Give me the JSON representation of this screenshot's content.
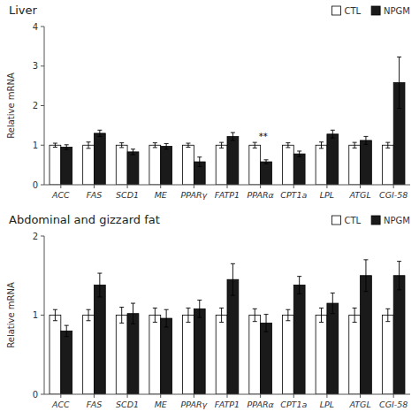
{
  "chart_data": [
    {
      "type": "bar",
      "title": "Liver",
      "categories": [
        "ACC",
        "FAS",
        "SCD1",
        "ME",
        "PPARγ",
        "FATP1",
        "PPARα",
        "CPT1a",
        "LPL",
        "ATGL",
        "CGI-58"
      ],
      "series": [
        {
          "name": "CTL",
          "color": "#ffffff",
          "values": [
            1.0,
            1.0,
            1.0,
            1.0,
            1.0,
            1.0,
            1.0,
            1.0,
            1.0,
            1.0,
            1.0
          ],
          "errors": [
            0.05,
            0.08,
            0.06,
            0.06,
            0.05,
            0.07,
            0.07,
            0.06,
            0.08,
            0.07,
            0.07
          ]
        },
        {
          "name": "NPGM",
          "color": "#1a1a1a",
          "values": [
            0.95,
            1.3,
            0.83,
            0.97,
            0.58,
            1.22,
            0.58,
            0.78,
            1.28,
            1.12,
            2.58
          ],
          "errors": [
            0.06,
            0.08,
            0.07,
            0.07,
            0.12,
            0.1,
            0.05,
            0.07,
            0.1,
            0.1,
            0.65
          ]
        }
      ],
      "ylabel": "Relative mRNA",
      "ylim": [
        0,
        4
      ],
      "yticks": [
        0,
        1,
        2,
        3,
        4
      ],
      "grid": false,
      "legend": "upper right",
      "annotations": [
        {
          "text": "**",
          "category": "PPARα",
          "series": "CTL"
        }
      ]
    },
    {
      "type": "bar",
      "title": "Abdominal and gizzard fat",
      "categories": [
        "ACC",
        "FAS",
        "SCD1",
        "ME",
        "PPARγ",
        "FATP1",
        "PPARα",
        "CPT1a",
        "LPL",
        "ATGL",
        "CGI-58"
      ],
      "series": [
        {
          "name": "CTL",
          "color": "#ffffff",
          "values": [
            1.0,
            1.0,
            1.0,
            1.0,
            1.0,
            1.0,
            1.0,
            1.0,
            1.0,
            1.0,
            1.0
          ],
          "errors": [
            0.07,
            0.07,
            0.1,
            0.09,
            0.09,
            0.09,
            0.08,
            0.07,
            0.09,
            0.09,
            0.08
          ]
        },
        {
          "name": "NPGM",
          "color": "#1a1a1a",
          "values": [
            0.8,
            1.38,
            1.02,
            0.96,
            1.08,
            1.45,
            0.9,
            1.38,
            1.15,
            1.5,
            1.5
          ],
          "errors": [
            0.07,
            0.15,
            0.13,
            0.11,
            0.11,
            0.2,
            0.11,
            0.11,
            0.13,
            0.2,
            0.18
          ]
        }
      ],
      "ylabel": "Relative mRNA",
      "ylim": [
        0,
        2
      ],
      "yticks": [
        0,
        1,
        2
      ],
      "grid": false,
      "legend": "upper right"
    }
  ]
}
